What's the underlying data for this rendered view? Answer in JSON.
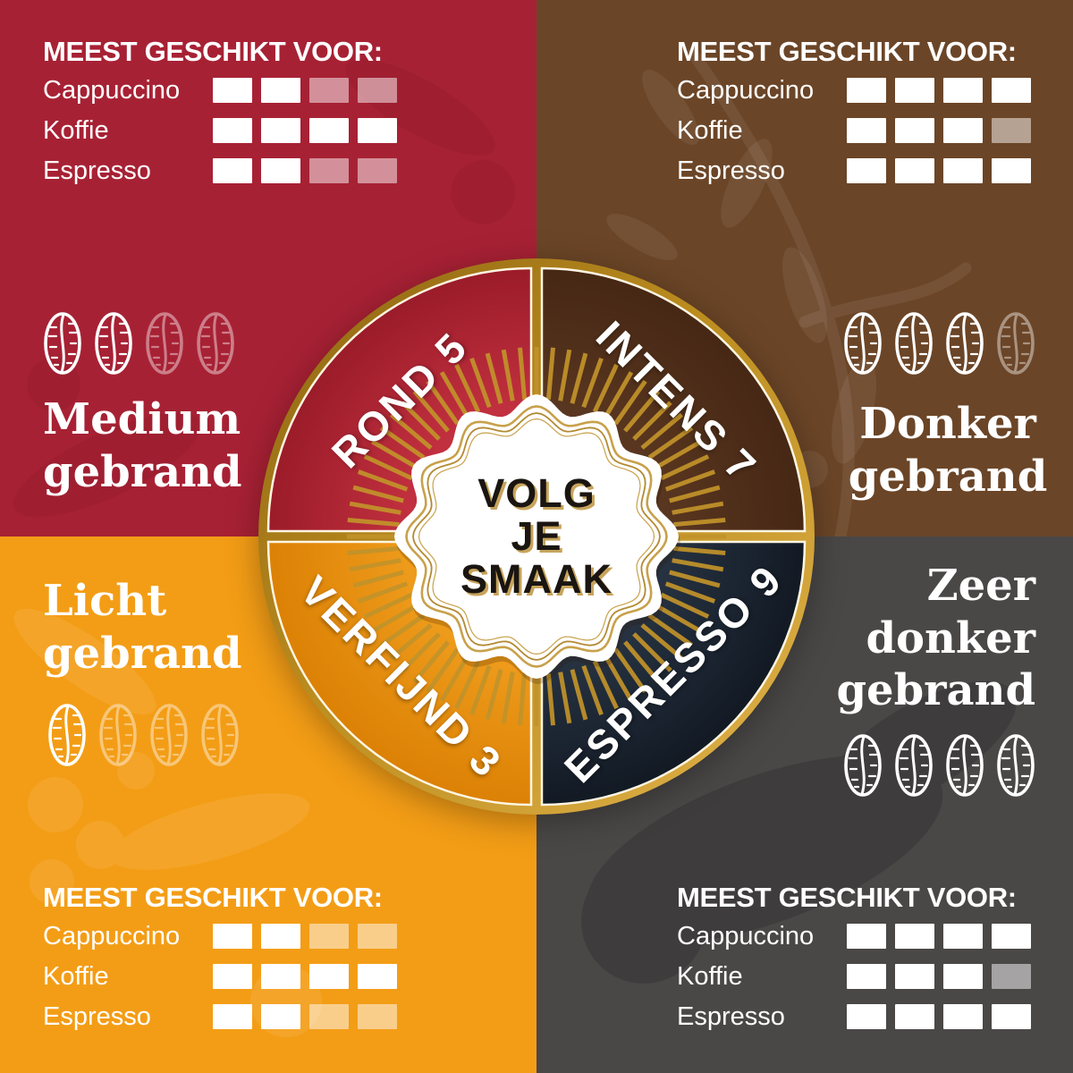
{
  "wheel": {
    "center_lines": [
      "VOLG",
      "JE",
      "SMAAK"
    ],
    "segments": [
      {
        "name": "rond",
        "label": "ROND 5",
        "intensity": 5,
        "color": "#C02A38"
      },
      {
        "name": "intens",
        "label": "INTENS 7",
        "intensity": 7,
        "color": "#54331E"
      },
      {
        "name": "verfijnd",
        "label": "VERFIJND 3",
        "intensity": 3,
        "color": "#E78B0D"
      },
      {
        "name": "espresso",
        "label": "ESPRESSO 9",
        "intensity": 9,
        "color": "#1B2430"
      }
    ]
  },
  "colors": {
    "gold": "#C49A2E",
    "badge_background": "#FFFFFF",
    "badge_text": "#1A1511",
    "text": "#FFFFFF"
  },
  "quadrants": [
    {
      "name": "medium-gebrand",
      "position": "top-left",
      "title": "Medium gebrand",
      "title_lines": [
        "Medium",
        "gebrand"
      ],
      "bg_color": "#A72134",
      "roast_beans_filled": 2,
      "roast_beans_total": 4,
      "suitability": {
        "heading": "MEEST GESCHIKT VOOR:",
        "rows": [
          {
            "label": "Cappuccino",
            "filled": 2,
            "total": 4
          },
          {
            "label": "Koffie",
            "filled": 4,
            "total": 4
          },
          {
            "label": "Espresso",
            "filled": 2,
            "total": 4
          }
        ]
      }
    },
    {
      "name": "donker-gebrand",
      "position": "top-right",
      "title": "Donker gebrand",
      "title_lines": [
        "Donker",
        "gebrand"
      ],
      "bg_color": "#6B4527",
      "roast_beans_filled": 3,
      "roast_beans_total": 4,
      "suitability": {
        "heading": "MEEST GESCHIKT VOOR:",
        "rows": [
          {
            "label": "Cappuccino",
            "filled": 4,
            "total": 4
          },
          {
            "label": "Koffie",
            "filled": 3,
            "total": 4
          },
          {
            "label": "Espresso",
            "filled": 4,
            "total": 4
          }
        ]
      }
    },
    {
      "name": "licht-gebrand",
      "position": "bottom-left",
      "title": "Licht gebrand",
      "title_lines": [
        "Licht",
        "gebrand"
      ],
      "bg_color": "#F39D16",
      "roast_beans_filled": 1,
      "roast_beans_total": 4,
      "suitability": {
        "heading": "MEEST GESCHIKT VOOR:",
        "rows": [
          {
            "label": "Cappuccino",
            "filled": 2,
            "total": 4
          },
          {
            "label": "Koffie",
            "filled": 4,
            "total": 4
          },
          {
            "label": "Espresso",
            "filled": 2,
            "total": 4
          }
        ]
      }
    },
    {
      "name": "zeer-donker-gebrand",
      "position": "bottom-right",
      "title": "Zeer donker gebrand",
      "title_lines": [
        "Zeer",
        "donker",
        "gebrand"
      ],
      "bg_color": "#4A4747",
      "roast_beans_filled": 4,
      "roast_beans_total": 4,
      "suitability": {
        "heading": "MEEST GESCHIKT VOOR:",
        "rows": [
          {
            "label": "Cappuccino",
            "filled": 4,
            "total": 4
          },
          {
            "label": "Koffie",
            "filled": 3,
            "total": 4
          },
          {
            "label": "Espresso",
            "filled": 4,
            "total": 4
          }
        ]
      }
    }
  ]
}
